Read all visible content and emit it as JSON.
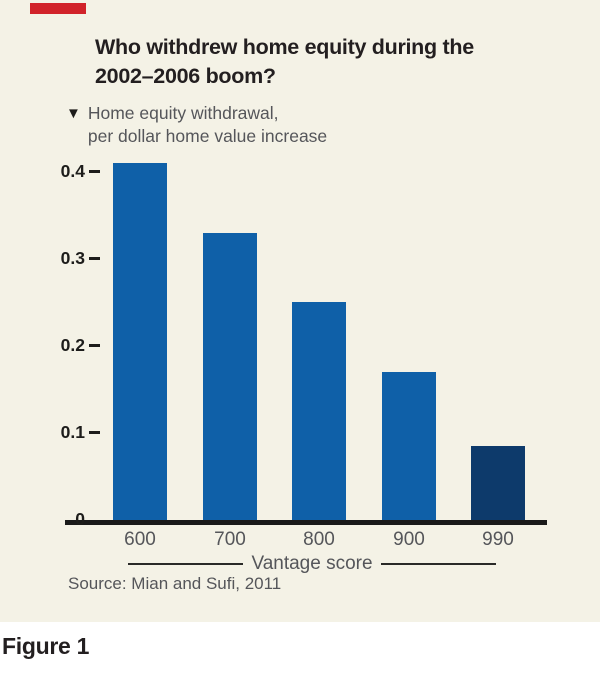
{
  "panel": {
    "title_line1": "Who withdrew home equity during the",
    "title_line2": "2002–2006 boom?",
    "legend": {
      "marker": "▼",
      "line1": "Home equity withdrawal,",
      "line2": "per dollar home value increase"
    },
    "source": "Source: Mian and Sufi, 2011"
  },
  "figure_label": "Figure 1",
  "colors": {
    "panel_background": "#f4f2e6",
    "bar_blue": "#0f60a8",
    "bar_navy": "#0d3a6b",
    "text_gray": "#55565a",
    "text_black": "#231f20",
    "red_accent": "#d1232a"
  },
  "chart_data": {
    "type": "bar",
    "title": "Who withdrew home equity during the 2002–2006 boom?",
    "series_label": "Home equity withdrawal, per dollar home value increase",
    "categories": [
      "600",
      "700",
      "800",
      "900",
      "990"
    ],
    "values": [
      0.41,
      0.33,
      0.25,
      0.17,
      0.085
    ],
    "bar_colors": [
      "#0f60a8",
      "#0f60a8",
      "#0f60a8",
      "#0f60a8",
      "#0d3a6b"
    ],
    "highlight_index": 4,
    "xlabel": "Vantage score",
    "ylabel": "",
    "ylim": [
      0,
      0.45
    ],
    "yticks": [
      0,
      0.1,
      0.2,
      0.3,
      0.4
    ],
    "ytick_labels": [
      "0",
      "0.1",
      "0.2",
      "0.3",
      "0.4"
    ],
    "grid": false,
    "legend_position": "top-left",
    "source": "Source: Mian and Sufi, 2011"
  }
}
